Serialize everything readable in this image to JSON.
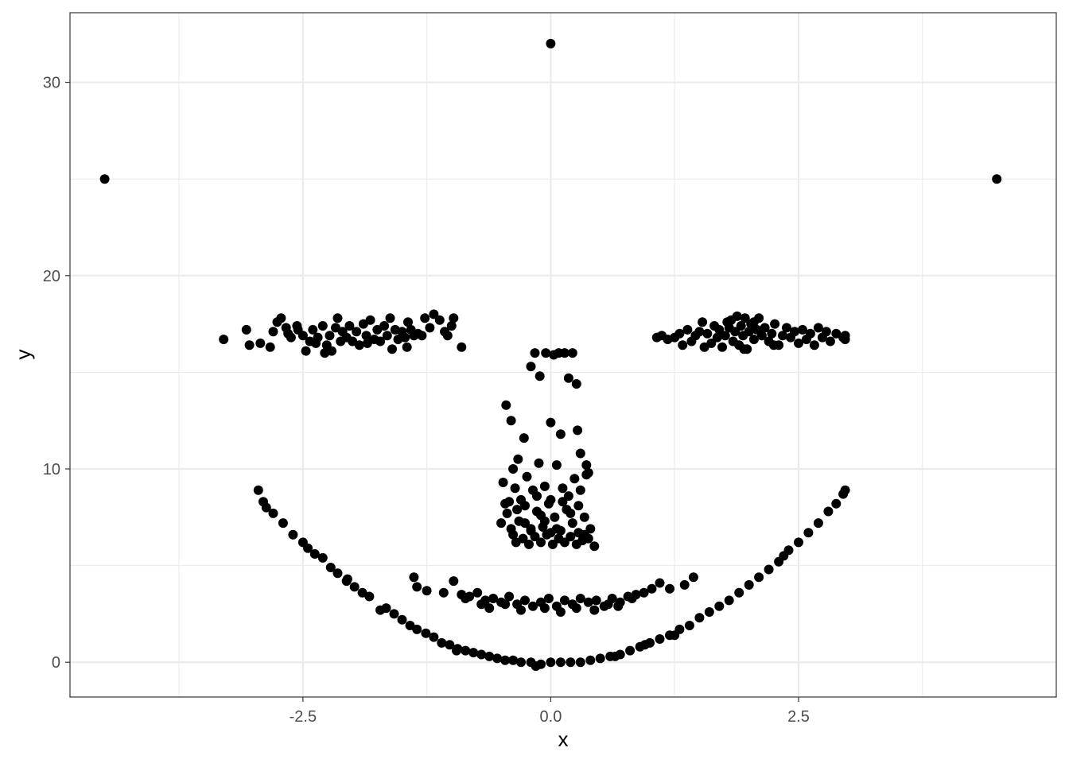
{
  "chart_data": {
    "type": "scatter",
    "title": "",
    "xlabel": "x",
    "ylabel": "y",
    "xlim": [
      -4.85,
      5.1
    ],
    "ylim": [
      -1.8,
      33.6
    ],
    "x_ticks": [
      {
        "value": -2.5,
        "label": "-2.5"
      },
      {
        "value": 0,
        "label": "0.0"
      },
      {
        "value": 2.5,
        "label": "2.5"
      }
    ],
    "y_ticks": [
      {
        "value": 0,
        "label": "0"
      },
      {
        "value": 10,
        "label": "10"
      },
      {
        "value": 20,
        "label": "20"
      },
      {
        "value": 30,
        "label": "30"
      }
    ],
    "grid": true,
    "theme": "black-and-white",
    "point_color": "#000000",
    "points": [
      [
        -4.5,
        25
      ],
      [
        0,
        32
      ],
      [
        4.5,
        25
      ],
      [
        -3.3,
        16.7
      ],
      [
        -3.07,
        17.2
      ],
      [
        -3.04,
        16.4
      ],
      [
        -2.93,
        16.5
      ],
      [
        -2.83,
        16.3
      ],
      [
        -2.8,
        17.1
      ],
      [
        -2.76,
        17.6
      ],
      [
        -2.72,
        17.8
      ],
      [
        -2.67,
        17.3
      ],
      [
        -2.65,
        17.0
      ],
      [
        -2.62,
        16.8
      ],
      [
        -2.56,
        17.4
      ],
      [
        -2.5,
        16.9
      ],
      [
        -2.47,
        16.1
      ],
      [
        -2.43,
        16.6
      ],
      [
        -2.4,
        17.2
      ],
      [
        -2.35,
        16.8
      ],
      [
        -2.3,
        17.4
      ],
      [
        -2.26,
        16.4
      ],
      [
        -2.23,
        16.9
      ],
      [
        -2.21,
        16.1
      ],
      [
        -2.17,
        17.3
      ],
      [
        -2.15,
        17.8
      ],
      [
        -2.12,
        16.6
      ],
      [
        -2.1,
        17.1
      ],
      [
        -2.06,
        16.8
      ],
      [
        -2.03,
        17.4
      ],
      [
        -2.0,
        16.6
      ],
      [
        -1.96,
        17.1
      ],
      [
        -1.93,
        16.4
      ],
      [
        -1.89,
        17.5
      ],
      [
        -1.86,
        16.9
      ],
      [
        -1.82,
        17.7
      ],
      [
        -1.78,
        16.7
      ],
      [
        -1.75,
        17.2
      ],
      [
        -1.72,
        16.6
      ],
      [
        -1.68,
        17.4
      ],
      [
        -1.65,
        16.9
      ],
      [
        -1.62,
        17.8
      ],
      [
        -1.6,
        16.2
      ],
      [
        -1.57,
        17.2
      ],
      [
        -1.54,
        16.7
      ],
      [
        -1.5,
        17.1
      ],
      [
        -1.47,
        16.8
      ],
      [
        -1.44,
        17.6
      ],
      [
        -1.41,
        17.2
      ],
      [
        -1.38,
        16.9
      ],
      [
        -1.34,
        17.0
      ],
      [
        -1.3,
        16.9
      ],
      [
        -1.27,
        17.8
      ],
      [
        -1.22,
        17.3
      ],
      [
        -1.18,
        18.0
      ],
      [
        -1.12,
        17.7
      ],
      [
        -1.07,
        17.1
      ],
      [
        -1.04,
        16.9
      ],
      [
        -1.0,
        17.4
      ],
      [
        -0.98,
        17.8
      ],
      [
        -0.9,
        16.3
      ],
      [
        -1.45,
        16.3
      ],
      [
        -1.85,
        16.5
      ],
      [
        -2.28,
        16.0
      ],
      [
        -2.37,
        16.5
      ],
      [
        -2.55,
        17.2
      ],
      [
        1.07,
        16.8
      ],
      [
        1.12,
        16.9
      ],
      [
        1.18,
        16.7
      ],
      [
        1.25,
        16.8
      ],
      [
        1.3,
        17.0
      ],
      [
        1.33,
        16.4
      ],
      [
        1.38,
        17.2
      ],
      [
        1.42,
        16.6
      ],
      [
        1.46,
        16.9
      ],
      [
        1.5,
        17.1
      ],
      [
        1.53,
        17.6
      ],
      [
        1.55,
        16.3
      ],
      [
        1.58,
        17.0
      ],
      [
        1.62,
        16.5
      ],
      [
        1.65,
        17.4
      ],
      [
        1.68,
        16.8
      ],
      [
        1.7,
        17.2
      ],
      [
        1.73,
        16.3
      ],
      [
        1.76,
        16.9
      ],
      [
        1.8,
        17.3
      ],
      [
        1.82,
        17.7
      ],
      [
        1.84,
        16.6
      ],
      [
        1.86,
        17.1
      ],
      [
        1.88,
        17.9
      ],
      [
        1.9,
        16.4
      ],
      [
        1.92,
        17.4
      ],
      [
        1.94,
        16.9
      ],
      [
        1.96,
        17.8
      ],
      [
        1.98,
        16.2
      ],
      [
        2.0,
        17.1
      ],
      [
        2.02,
        17.5
      ],
      [
        2.05,
        16.7
      ],
      [
        2.08,
        17.2
      ],
      [
        2.1,
        17.8
      ],
      [
        2.13,
        16.9
      ],
      [
        2.16,
        17.3
      ],
      [
        2.2,
        16.6
      ],
      [
        2.23,
        17.0
      ],
      [
        2.26,
        17.5
      ],
      [
        2.3,
        16.4
      ],
      [
        2.34,
        16.9
      ],
      [
        2.38,
        17.3
      ],
      [
        2.42,
        16.8
      ],
      [
        2.46,
        17.1
      ],
      [
        2.5,
        16.5
      ],
      [
        2.54,
        17.2
      ],
      [
        2.58,
        16.7
      ],
      [
        2.62,
        17.0
      ],
      [
        2.66,
        16.4
      ],
      [
        2.7,
        17.3
      ],
      [
        2.74,
        16.8
      ],
      [
        2.78,
        17.1
      ],
      [
        2.82,
        16.6
      ],
      [
        2.88,
        17.0
      ],
      [
        2.95,
        16.8
      ],
      [
        2.97,
        16.9
      ],
      [
        2.97,
        16.7
      ],
      [
        1.95,
        16.2
      ],
      [
        2.25,
        16.4
      ],
      [
        1.78,
        17.6
      ],
      [
        2.05,
        17.6
      ],
      [
        -0.45,
        13.3
      ],
      [
        -0.4,
        12.5
      ],
      [
        -0.38,
        10.0
      ],
      [
        -0.33,
        10.5
      ],
      [
        -0.27,
        11.6
      ],
      [
        -0.2,
        15.3
      ],
      [
        -0.16,
        16.0
      ],
      [
        -0.11,
        14.8
      ],
      [
        -0.05,
        16.0
      ],
      [
        0.0,
        12.4
      ],
      [
        0.03,
        15.9
      ],
      [
        0.08,
        16.0
      ],
      [
        0.1,
        11.8
      ],
      [
        0.14,
        16.0
      ],
      [
        0.18,
        14.7
      ],
      [
        0.22,
        16.0
      ],
      [
        0.26,
        14.4
      ],
      [
        0.27,
        12.0
      ],
      [
        0.3,
        10.8
      ],
      [
        0.36,
        10.2
      ],
      [
        0.38,
        9.8
      ],
      [
        -0.48,
        9.3
      ],
      [
        -0.42,
        8.3
      ],
      [
        -0.36,
        9.0
      ],
      [
        -0.3,
        8.4
      ],
      [
        -0.24,
        9.6
      ],
      [
        -0.18,
        8.9
      ],
      [
        -0.12,
        10.3
      ],
      [
        -0.06,
        9.1
      ],
      [
        0.0,
        8.4
      ],
      [
        0.06,
        10.2
      ],
      [
        0.12,
        9.0
      ],
      [
        0.18,
        8.6
      ],
      [
        0.24,
        9.5
      ],
      [
        0.3,
        8.9
      ],
      [
        0.36,
        9.7
      ],
      [
        -0.5,
        7.2
      ],
      [
        -0.44,
        7.7
      ],
      [
        -0.38,
        6.6
      ],
      [
        -0.32,
        7.3
      ],
      [
        -0.26,
        8.1
      ],
      [
        -0.2,
        6.9
      ],
      [
        -0.14,
        7.8
      ],
      [
        -0.08,
        7.0
      ],
      [
        -0.02,
        8.2
      ],
      [
        0.04,
        7.5
      ],
      [
        0.1,
        6.8
      ],
      [
        0.16,
        7.9
      ],
      [
        0.22,
        7.2
      ],
      [
        0.28,
        8.1
      ],
      [
        0.34,
        7.5
      ],
      [
        0.4,
        6.9
      ],
      [
        -0.35,
        6.2
      ],
      [
        -0.28,
        6.4
      ],
      [
        -0.22,
        6.1
      ],
      [
        -0.16,
        6.5
      ],
      [
        -0.1,
        6.2
      ],
      [
        -0.04,
        6.6
      ],
      [
        0.02,
        6.1
      ],
      [
        0.08,
        6.4
      ],
      [
        0.14,
        6.2
      ],
      [
        0.2,
        6.5
      ],
      [
        0.26,
        6.1
      ],
      [
        0.32,
        6.3
      ],
      [
        0.38,
        6.4
      ],
      [
        0.44,
        6.0
      ],
      [
        -0.46,
        8.2
      ],
      [
        -0.34,
        7.9
      ],
      [
        -0.1,
        7.6
      ],
      [
        0.06,
        6.9
      ],
      [
        0.2,
        7.7
      ],
      [
        -0.2,
        6.8
      ],
      [
        0.28,
        6.7
      ],
      [
        -0.06,
        7.3
      ],
      [
        0.12,
        8.3
      ],
      [
        -0.14,
        8.6
      ],
      [
        0.0,
        6.7
      ],
      [
        -0.26,
        7.2
      ],
      [
        0.34,
        6.6
      ],
      [
        -0.4,
        6.9
      ],
      [
        -1.38,
        4.4
      ],
      [
        -1.35,
        3.9
      ],
      [
        -1.25,
        3.7
      ],
      [
        -1.08,
        3.6
      ],
      [
        -0.98,
        4.2
      ],
      [
        -0.9,
        3.5
      ],
      [
        -0.82,
        3.4
      ],
      [
        -0.74,
        3.6
      ],
      [
        -0.66,
        3.2
      ],
      [
        -0.58,
        3.3
      ],
      [
        -0.5,
        3.1
      ],
      [
        -0.42,
        3.4
      ],
      [
        -0.34,
        3.0
      ],
      [
        -0.26,
        3.2
      ],
      [
        -0.18,
        2.9
      ],
      [
        -0.1,
        3.1
      ],
      [
        -0.02,
        3.3
      ],
      [
        0.06,
        2.9
      ],
      [
        0.14,
        3.2
      ],
      [
        0.22,
        3.0
      ],
      [
        0.3,
        3.3
      ],
      [
        0.38,
        3.1
      ],
      [
        0.46,
        3.2
      ],
      [
        0.54,
        2.9
      ],
      [
        0.62,
        3.3
      ],
      [
        0.7,
        3.1
      ],
      [
        0.78,
        3.4
      ],
      [
        0.86,
        3.5
      ],
      [
        0.94,
        3.6
      ],
      [
        1.02,
        3.8
      ],
      [
        1.1,
        4.1
      ],
      [
        1.2,
        3.8
      ],
      [
        1.35,
        4.0
      ],
      [
        1.44,
        4.4
      ],
      [
        -0.62,
        2.8
      ],
      [
        -0.3,
        2.7
      ],
      [
        0.1,
        2.6
      ],
      [
        0.44,
        2.7
      ],
      [
        0.68,
        2.9
      ],
      [
        -0.86,
        3.3
      ],
      [
        -0.46,
        3.0
      ],
      [
        -0.06,
        2.8
      ],
      [
        0.26,
        2.8
      ],
      [
        0.58,
        3.0
      ],
      [
        -0.7,
        3.0
      ],
      [
        0.82,
        3.3
      ],
      [
        -2.95,
        8.9
      ],
      [
        -2.9,
        8.3
      ],
      [
        -2.87,
        8.0
      ],
      [
        -2.8,
        7.7
      ],
      [
        -2.7,
        7.2
      ],
      [
        -2.6,
        6.6
      ],
      [
        -2.5,
        6.2
      ],
      [
        -2.45,
        5.9
      ],
      [
        -2.38,
        5.6
      ],
      [
        -2.3,
        5.4
      ],
      [
        -2.22,
        4.9
      ],
      [
        -2.15,
        4.6
      ],
      [
        -2.06,
        4.2
      ],
      [
        -1.98,
        3.9
      ],
      [
        -1.9,
        3.6
      ],
      [
        -1.83,
        3.4
      ],
      [
        -1.66,
        2.8
      ],
      [
        -1.58,
        2.5
      ],
      [
        -1.5,
        2.2
      ],
      [
        -1.42,
        1.9
      ],
      [
        -1.35,
        1.7
      ],
      [
        -1.26,
        1.5
      ],
      [
        -1.18,
        1.3
      ],
      [
        -1.1,
        1.0
      ],
      [
        -1.02,
        0.9
      ],
      [
        -0.94,
        0.7
      ],
      [
        -0.86,
        0.6
      ],
      [
        -0.78,
        0.5
      ],
      [
        -0.7,
        0.4
      ],
      [
        -0.62,
        0.3
      ],
      [
        -0.54,
        0.2
      ],
      [
        -0.46,
        0.1
      ],
      [
        -0.38,
        0.1
      ],
      [
        -0.3,
        0.0
      ],
      [
        -0.2,
        0.0
      ],
      [
        -0.1,
        -0.1
      ],
      [
        0.0,
        0.0
      ],
      [
        0.1,
        0.0
      ],
      [
        0.2,
        0.0
      ],
      [
        0.3,
        0.0
      ],
      [
        0.4,
        0.1
      ],
      [
        0.5,
        0.2
      ],
      [
        0.6,
        0.3
      ],
      [
        0.7,
        0.4
      ],
      [
        0.8,
        0.6
      ],
      [
        0.9,
        0.8
      ],
      [
        1.0,
        1.0
      ],
      [
        1.1,
        1.2
      ],
      [
        1.2,
        1.4
      ],
      [
        1.3,
        1.7
      ],
      [
        1.4,
        1.9
      ],
      [
        1.5,
        2.3
      ],
      [
        1.6,
        2.6
      ],
      [
        1.7,
        2.9
      ],
      [
        1.8,
        3.2
      ],
      [
        1.9,
        3.6
      ],
      [
        2.0,
        4.0
      ],
      [
        2.1,
        4.4
      ],
      [
        2.2,
        4.8
      ],
      [
        2.3,
        5.2
      ],
      [
        2.4,
        5.8
      ],
      [
        2.5,
        6.2
      ],
      [
        2.6,
        6.7
      ],
      [
        2.7,
        7.2
      ],
      [
        2.8,
        7.8
      ],
      [
        2.88,
        8.2
      ],
      [
        2.95,
        8.7
      ],
      [
        2.97,
        8.9
      ],
      [
        -1.72,
        2.7
      ],
      [
        -0.15,
        -0.2
      ],
      [
        0.65,
        0.3
      ],
      [
        1.25,
        1.4
      ],
      [
        2.35,
        5.5
      ],
      [
        -2.05,
        4.3
      ],
      [
        -0.95,
        0.6
      ],
      [
        0.95,
        0.9
      ]
    ]
  }
}
